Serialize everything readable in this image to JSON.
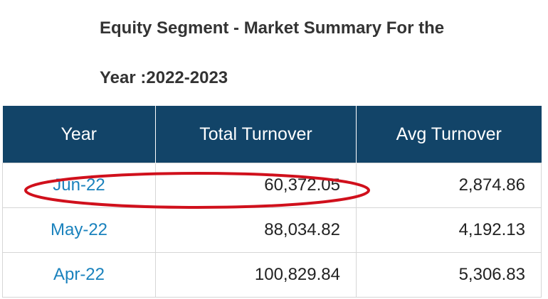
{
  "heading": {
    "line1": "Equity Segment - Market Summary For the",
    "line2": "Year :2022-2023"
  },
  "table": {
    "columns": [
      "Year",
      "Total Turnover",
      "Avg Turnover"
    ],
    "rows": [
      {
        "year": "Jun-22",
        "total": "60,372.05",
        "avg": "2,874.86",
        "highlighted": true
      },
      {
        "year": "May-22",
        "total": "88,034.82",
        "avg": "4,192.13"
      },
      {
        "year": "Apr-22",
        "total": "100,829.84",
        "avg": "5,306.83"
      }
    ]
  },
  "colors": {
    "header_bg": "#124468",
    "header_text": "#ffffff",
    "link": "#1a82bd",
    "highlight_annotation": "#d0101c"
  }
}
